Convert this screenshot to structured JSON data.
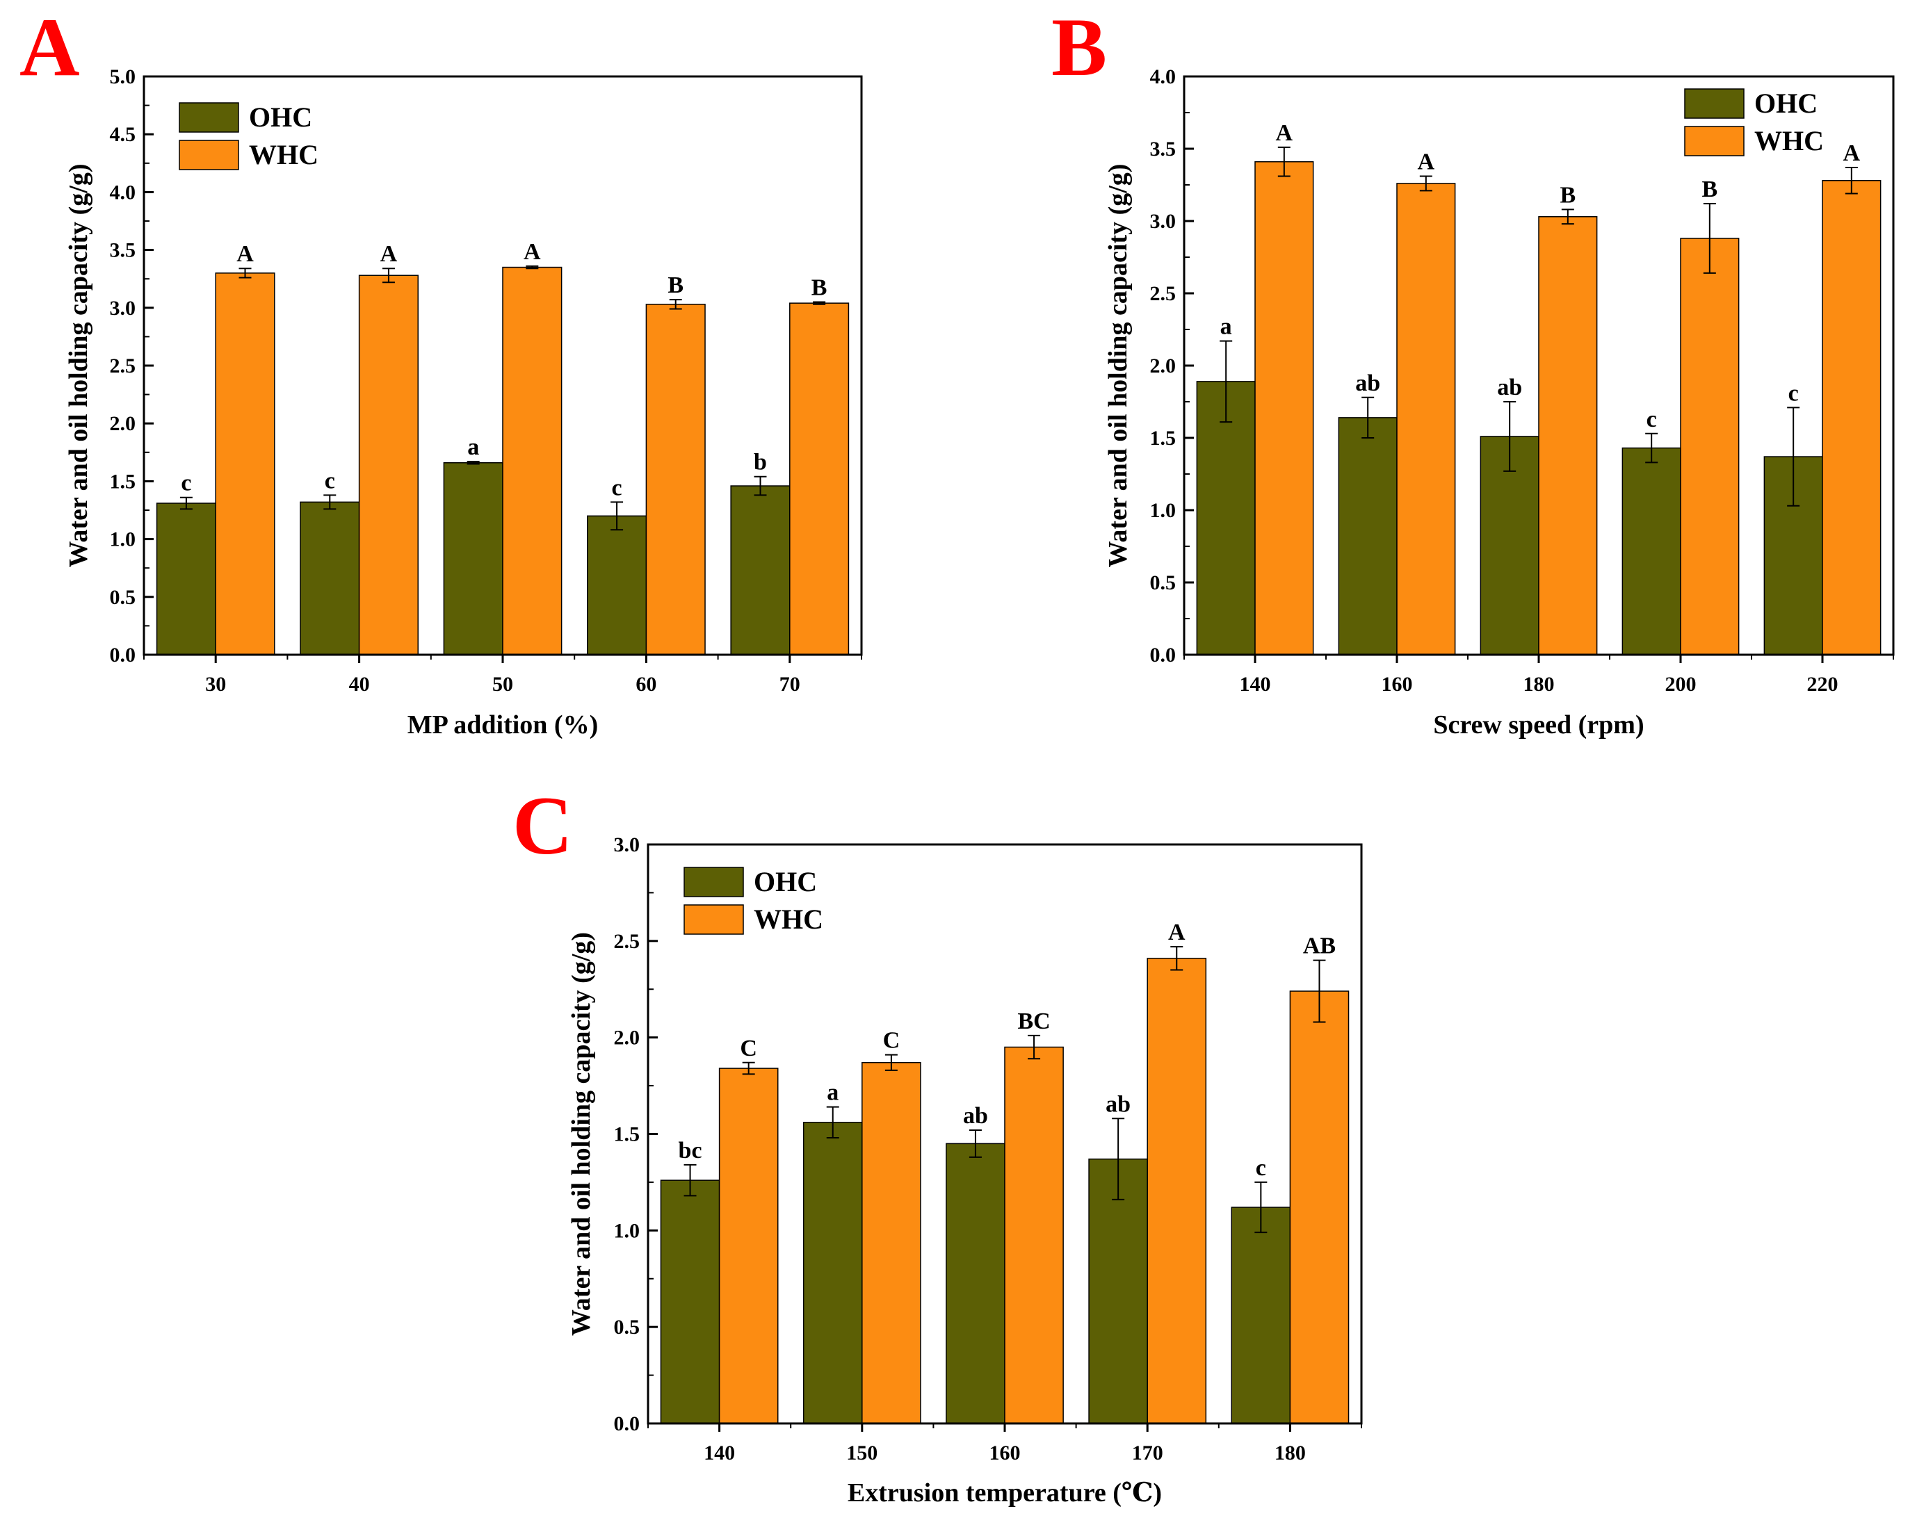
{
  "colors": {
    "OHC": "#5c5f05",
    "WHC": "#fc8c12",
    "panel_letter": "#ff0000",
    "axis": "#000000"
  },
  "chart_data": [
    {
      "panel": "A",
      "type": "bar",
      "categories": [
        "30",
        "40",
        "50",
        "60",
        "70"
      ],
      "xlabel": "MP addition (%)",
      "ylabel": "Water and oil holding capacity (g/g)",
      "ylim": [
        0,
        5.0
      ],
      "yticks": [
        "0.0",
        "0.5",
        "1.0",
        "1.5",
        "2.0",
        "2.5",
        "3.0",
        "3.5",
        "4.0",
        "4.5",
        "5.0"
      ],
      "legend_position": "top-left",
      "series": [
        {
          "name": "OHC",
          "values": [
            1.31,
            1.32,
            1.66,
            1.2,
            1.46
          ],
          "errors": [
            0.05,
            0.06,
            0.01,
            0.12,
            0.08
          ],
          "labels": [
            "c",
            "c",
            "a",
            "c",
            "b"
          ]
        },
        {
          "name": "WHC",
          "values": [
            3.3,
            3.28,
            3.35,
            3.03,
            3.04
          ],
          "errors": [
            0.04,
            0.06,
            0.01,
            0.04,
            0.01
          ],
          "labels": [
            "A",
            "A",
            "A",
            "B",
            "B"
          ]
        }
      ]
    },
    {
      "panel": "B",
      "type": "bar",
      "categories": [
        "140",
        "160",
        "180",
        "200",
        "220"
      ],
      "xlabel": "Screw speed (rpm)",
      "ylabel": "Water and oil holding capacity (g/g)",
      "ylim": [
        0,
        4.0
      ],
      "yticks": [
        "0.0",
        "0.5",
        "1.0",
        "1.5",
        "2.0",
        "2.5",
        "3.0",
        "3.5",
        "4.0"
      ],
      "legend_position": "top-right",
      "series": [
        {
          "name": "OHC",
          "values": [
            1.89,
            1.64,
            1.51,
            1.43,
            1.37
          ],
          "errors": [
            0.28,
            0.14,
            0.24,
            0.1,
            0.34
          ],
          "labels": [
            "a",
            "ab",
            "ab",
            "c",
            "c"
          ]
        },
        {
          "name": "WHC",
          "values": [
            3.41,
            3.26,
            3.03,
            2.88,
            3.28
          ],
          "errors": [
            0.1,
            0.05,
            0.05,
            0.24,
            0.09
          ],
          "labels": [
            "A",
            "A",
            "B",
            "B",
            "A"
          ]
        }
      ]
    },
    {
      "panel": "C",
      "type": "bar",
      "categories": [
        "140",
        "150",
        "160",
        "170",
        "180"
      ],
      "xlabel": "Extrusion temperature (℃)",
      "ylabel": "Water and oil holding capacity (g/g)",
      "ylim": [
        0,
        3.0
      ],
      "yticks": [
        "0.0",
        "0.5",
        "1.0",
        "1.5",
        "2.0",
        "2.5",
        "3.0"
      ],
      "legend_position": "top-left",
      "series": [
        {
          "name": "OHC",
          "values": [
            1.26,
            1.56,
            1.45,
            1.37,
            1.12
          ],
          "errors": [
            0.08,
            0.08,
            0.07,
            0.21,
            0.13
          ],
          "labels": [
            "bc",
            "a",
            "ab",
            "ab",
            "c"
          ]
        },
        {
          "name": "WHC",
          "values": [
            1.84,
            1.87,
            1.95,
            2.41,
            2.24
          ],
          "errors": [
            0.03,
            0.04,
            0.06,
            0.06,
            0.16
          ],
          "labels": [
            "C",
            "C",
            "BC",
            "A",
            "AB"
          ]
        }
      ]
    }
  ]
}
